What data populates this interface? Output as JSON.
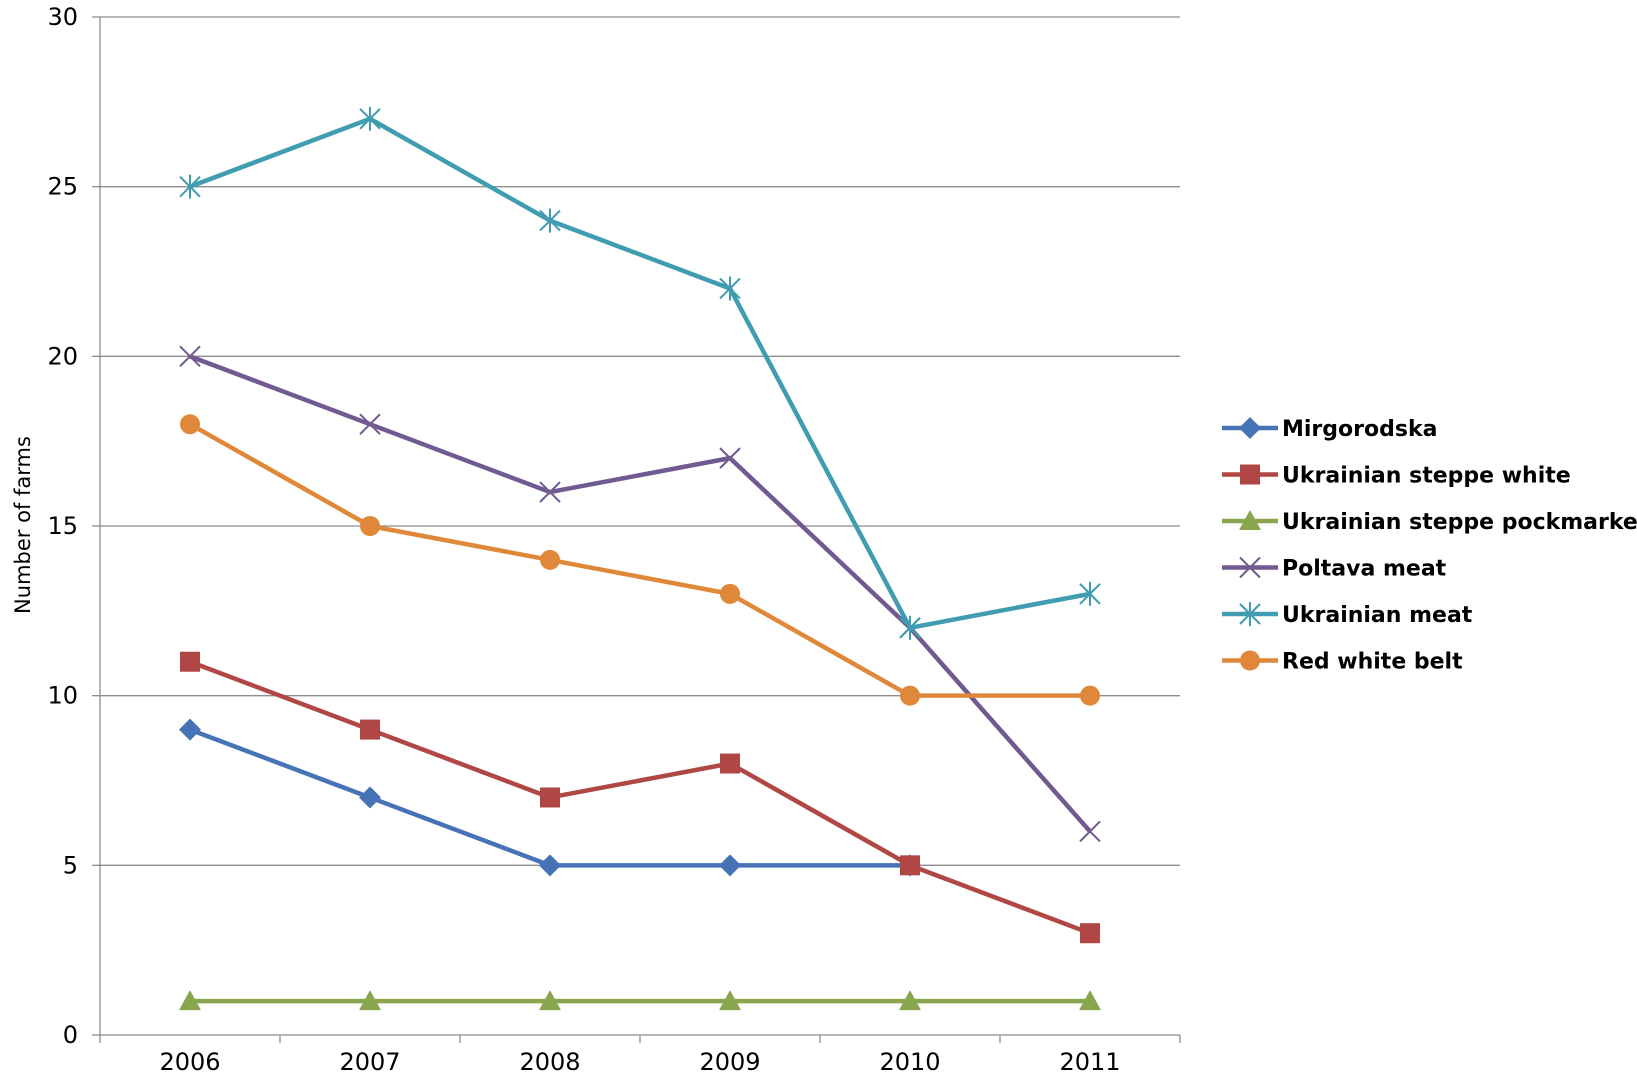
{
  "chart_data": {
    "type": "line",
    "title": "",
    "xlabel": "",
    "ylabel": "Number of farms",
    "x": [
      "2006",
      "2007",
      "2008",
      "2009",
      "2010",
      "2011"
    ],
    "ylim": [
      0,
      30
    ],
    "yticks": [
      0,
      5,
      10,
      15,
      20,
      25,
      30
    ],
    "grid": true,
    "legend_position": "right",
    "series": [
      {
        "name": "Mirgorodska",
        "color": "#4573b6",
        "marker": "diamond",
        "values": [
          9,
          7,
          5,
          5,
          5,
          null
        ]
      },
      {
        "name": "Ukrainian steppe white",
        "color": "#b04745",
        "marker": "square",
        "values": [
          11,
          9,
          7,
          8,
          5,
          3
        ]
      },
      {
        "name": "Ukrainian steppe pockmarked",
        "color": "#89a54e",
        "marker": "triangle",
        "values": [
          1,
          1,
          1,
          1,
          1,
          1
        ]
      },
      {
        "name": "Poltava meat",
        "color": "#715a92",
        "marker": "x",
        "values": [
          20,
          18,
          16,
          17,
          12,
          6
        ]
      },
      {
        "name": "Ukrainian meat",
        "color": "#3f9cb1",
        "marker": "star",
        "values": [
          25,
          27,
          24,
          22,
          12,
          13
        ]
      },
      {
        "name": "Red white belt",
        "color": "#e0883a",
        "marker": "circle",
        "values": [
          18,
          15,
          14,
          13,
          10,
          10
        ]
      }
    ]
  }
}
